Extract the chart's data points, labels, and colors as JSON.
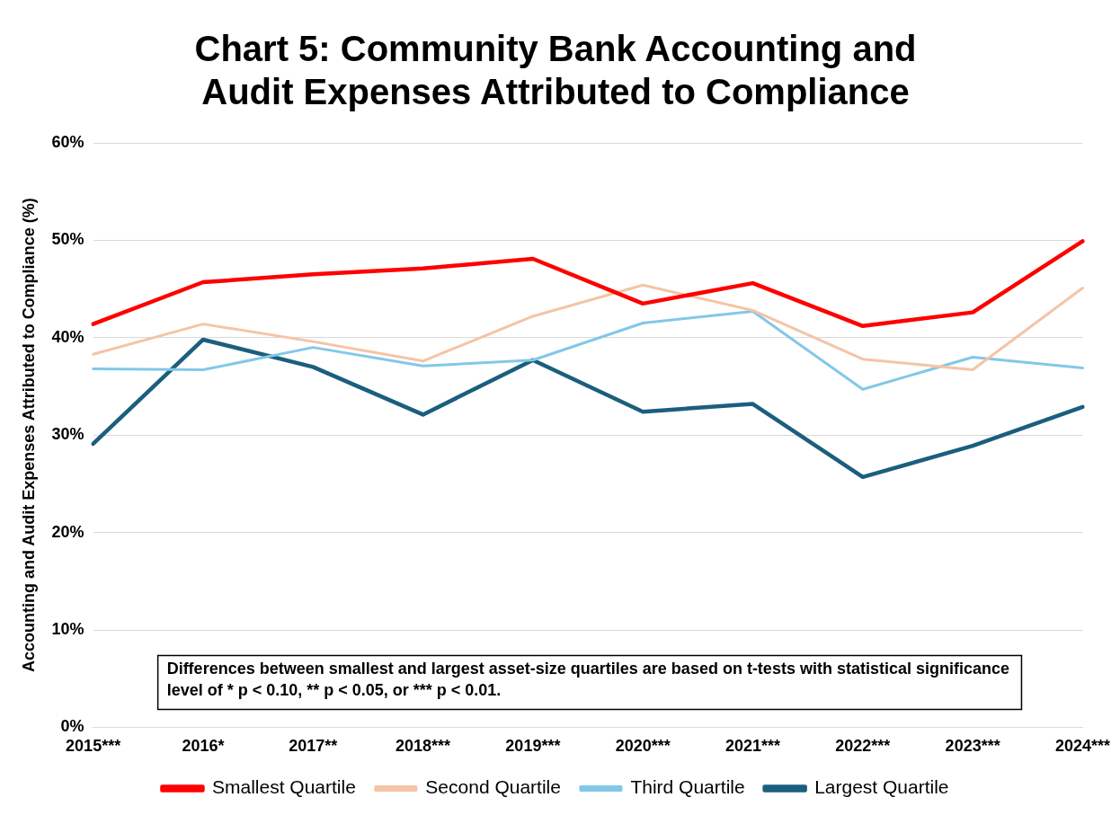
{
  "chart_data": {
    "type": "line",
    "title": [
      "Chart 5: Community Bank Accounting and",
      "Audit Expenses Attributed to Compliance"
    ],
    "ylabel": "Accounting and Audit Expenses Attributed to Compliance (%)",
    "categories": [
      "2015***",
      "2016*",
      "2017**",
      "2018***",
      "2019***",
      "2020***",
      "2021***",
      "2022***",
      "2023***",
      "2024***"
    ],
    "series": [
      {
        "name": "Smallest Quartile",
        "color": "#ff0000",
        "values": [
          41.4,
          45.7,
          46.5,
          47.1,
          48.1,
          43.5,
          45.6,
          41.2,
          42.6,
          49.9
        ]
      },
      {
        "name": "Second Quartile",
        "color": "#f5c4a6",
        "values": [
          38.3,
          41.4,
          39.6,
          37.6,
          42.2,
          45.4,
          42.8,
          37.8,
          36.7,
          45.1
        ]
      },
      {
        "name": "Third Quartile",
        "color": "#82c8e8",
        "values": [
          36.8,
          36.7,
          39.0,
          37.1,
          37.7,
          41.5,
          42.7,
          34.7,
          38.0,
          36.9
        ]
      },
      {
        "name": "Largest Quartile",
        "color": "#1b5e7e",
        "values": [
          29.1,
          39.8,
          37.0,
          32.1,
          37.7,
          32.4,
          33.2,
          25.7,
          28.9,
          32.9
        ]
      }
    ],
    "ylim": [
      0,
      60
    ],
    "yticks": [
      {
        "value": 0,
        "label": "0%"
      },
      {
        "value": 10,
        "label": "10%"
      },
      {
        "value": 20,
        "label": "20%"
      },
      {
        "value": 30,
        "label": "30%"
      },
      {
        "value": 40,
        "label": "40%"
      },
      {
        "value": 50,
        "label": "50%"
      },
      {
        "value": 60,
        "label": "60%"
      }
    ],
    "grid": "y",
    "legend": "bottom",
    "marker": "none",
    "line_style": "solid",
    "annotations": [
      "Differences between smallest and largest asset-size quartiles are based on t-tests with statistical significance level of * p < 0.10, ** p < 0.05, or *** p < 0.01."
    ]
  }
}
